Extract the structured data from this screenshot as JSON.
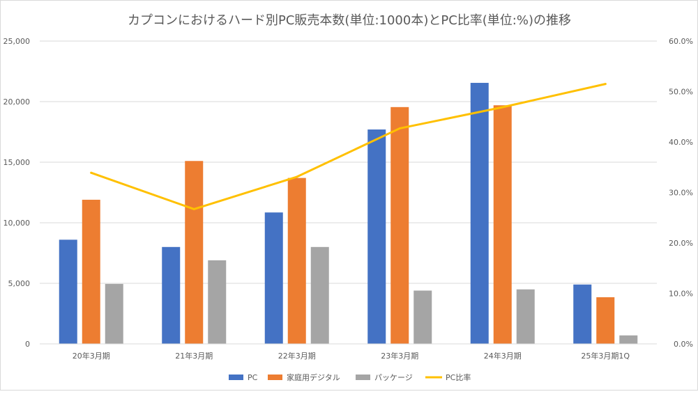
{
  "chart_data": {
    "type": "bar",
    "title": "カプコンにおけるハード別PC販売本数(単位:1000本)とPC比率(単位:%)の推移",
    "categories": [
      "20年3月期",
      "21年3月期",
      "22年3月期",
      "23年3月期",
      "24年3月期",
      "25年3月期1Q"
    ],
    "series": [
      {
        "name": "PC",
        "type": "bar",
        "axis": "left",
        "color": "#4472c4",
        "values": [
          8600,
          8000,
          10850,
          17700,
          21550,
          4900
        ]
      },
      {
        "name": "家庭用デジタル",
        "type": "bar",
        "axis": "left",
        "color": "#ed7d31",
        "values": [
          11900,
          15100,
          13700,
          19550,
          19700,
          3850
        ]
      },
      {
        "name": "パッケージ",
        "type": "bar",
        "axis": "left",
        "color": "#a5a5a5",
        "values": [
          4950,
          6900,
          8000,
          4400,
          4500,
          700
        ]
      },
      {
        "name": "PC比率",
        "type": "line",
        "axis": "right",
        "color": "#ffc000",
        "values": [
          33.9,
          26.7,
          33.1,
          42.7,
          46.9,
          51.5
        ]
      }
    ],
    "y_left": {
      "min": 0,
      "max": 25000,
      "step": 5000,
      "tick_labels": [
        "0",
        "5,000",
        "10,000",
        "15,000",
        "20,000",
        "25,000"
      ]
    },
    "y_right": {
      "min": 0,
      "max": 60,
      "step": 10,
      "tick_labels": [
        "0.0%",
        "10.0%",
        "20.0%",
        "30.0%",
        "40.0%",
        "50.0%",
        "60.0%"
      ]
    },
    "grid": true,
    "legend": "bottom-center"
  }
}
